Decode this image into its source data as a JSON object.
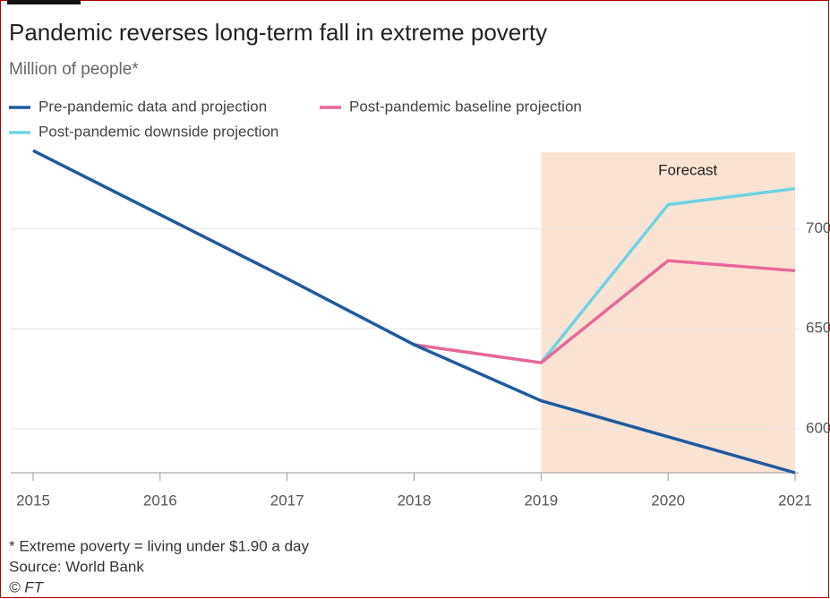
{
  "chart_data": {
    "type": "line",
    "title": "Pandemic reverses long-term fall in extreme poverty",
    "subtitle": "Million of people*",
    "x": [
      2015,
      2016,
      2017,
      2018,
      2019,
      2020,
      2021
    ],
    "series": [
      {
        "name": "Pre-pandemic data and projection",
        "color": "#1f5a9e",
        "values": [
          739,
          707,
          675,
          642,
          614,
          596,
          578
        ]
      },
      {
        "name": "Post-pandemic baseline projection",
        "color": "#e8679a",
        "values": [
          null,
          null,
          null,
          642,
          633,
          684,
          679
        ]
      },
      {
        "name": "Post-pandemic downside projection",
        "color": "#6fd3e3",
        "values": [
          null,
          null,
          null,
          null,
          633,
          712,
          720
        ]
      }
    ],
    "forecast": {
      "label": "Forecast",
      "start": 2019,
      "end": 2021,
      "color": "#fbe3d3"
    },
    "xlim": [
      2015,
      2021
    ],
    "xticks": [
      2015,
      2016,
      2017,
      2018,
      2019,
      2020,
      2021
    ],
    "ylim": [
      578,
      740
    ],
    "yticks": [
      600,
      650,
      700
    ],
    "grid": true,
    "notes": [
      "* Extreme poverty = living under $1.90 a day",
      "Source: World Bank",
      "© FT"
    ]
  }
}
